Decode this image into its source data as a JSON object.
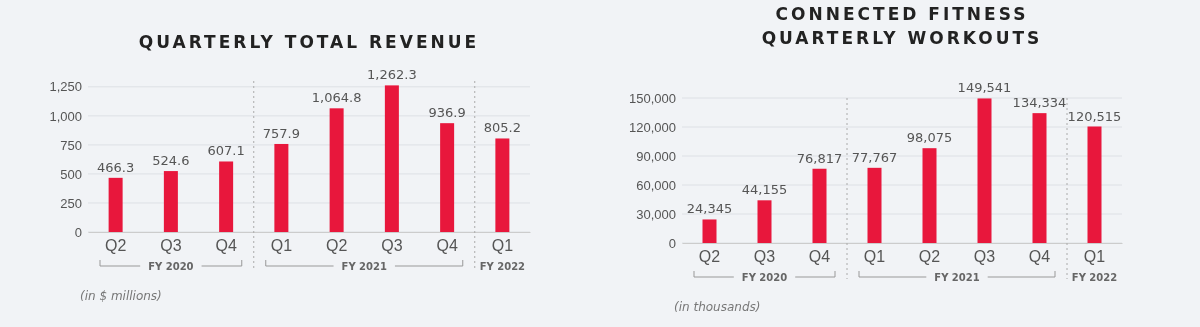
{
  "chart_data": [
    {
      "type": "bar",
      "title": "QUARTERLY TOTAL REVENUE",
      "categories": [
        "Q2",
        "Q3",
        "Q4",
        "Q1",
        "Q2",
        "Q3",
        "Q4",
        "Q1"
      ],
      "values": [
        466.3,
        524.6,
        607.1,
        757.9,
        1064.8,
        1262.3,
        936.9,
        805.2
      ],
      "value_labels": [
        "466.3",
        "524.6",
        "607.1",
        "757.9",
        "1,064.8",
        "1,262.3",
        "936.9",
        "805.2"
      ],
      "color": "#e8173c",
      "ylim": [
        0,
        1300
      ],
      "yticks": [
        0,
        250,
        500,
        750,
        {
          "value": 1000,
          "label": "1,000"
        },
        {
          "value": 1250,
          "label": "1,250"
        }
      ],
      "grid": "y",
      "annotations": [
        "FY 2020",
        "FY 2021",
        "FY 2022",
        "(in $ millions)"
      ]
    },
    {
      "type": "bar",
      "title": "CONNECTED FITNESS QUARTERLY WORKOUTS",
      "categories": [
        "Q2",
        "Q3",
        "Q4",
        "Q1",
        "Q2",
        "Q3",
        "Q4",
        "Q1"
      ],
      "values": [
        24345,
        44155,
        76817,
        77767,
        98075,
        149541,
        134334,
        120515
      ],
      "value_labels": [
        "24,345",
        "44,155",
        "76,817",
        "77,767",
        "98,075",
        "149,541",
        "134,334",
        "120,515"
      ],
      "color": "#e8173c",
      "ylim": [
        0,
        150000
      ],
      "yticks": [
        0,
        {
          "value": 30000,
          "label": "30,000"
        },
        {
          "value": 60000,
          "label": "60,000"
        },
        {
          "value": 90000,
          "label": "90,000"
        },
        {
          "value": 120000,
          "label": "120,000"
        },
        {
          "value": 150000,
          "label": "150,000"
        }
      ],
      "grid": "y",
      "annotations": [
        "FY 2020",
        "FY 2021",
        "FY 2022",
        "(in thousands)"
      ]
    }
  ]
}
